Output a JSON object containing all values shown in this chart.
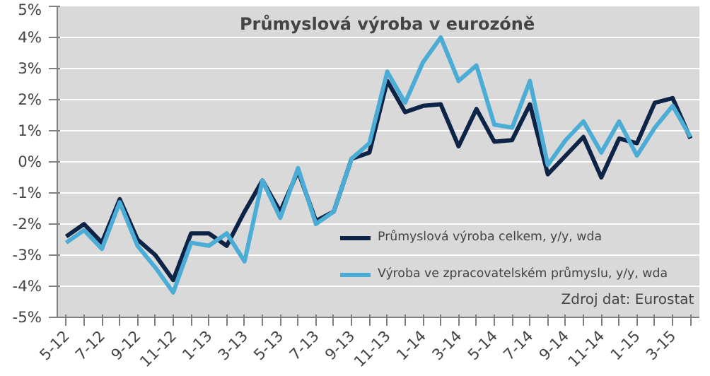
{
  "chart_data": {
    "type": "line",
    "title": "Průmyslová výroba v eurozóně",
    "categories": [
      "5-12",
      null,
      "7-12",
      null,
      "9-12",
      null,
      "11-12",
      null,
      "1-13",
      null,
      "3-13",
      null,
      "5-13",
      null,
      "7-13",
      null,
      "9-13",
      null,
      "11-13",
      null,
      "1-14",
      null,
      "3-14",
      null,
      "5-14",
      null,
      "7-14",
      null,
      "9-14",
      null,
      "11-14",
      null,
      "1-15",
      null,
      "3-15",
      null
    ],
    "series": [
      {
        "name": "Průmyslová výroba celkem, y/y, wda",
        "color": "#0d2447",
        "values": [
          -2.4,
          -2.0,
          -2.6,
          -1.2,
          -2.5,
          -3.0,
          -3.8,
          -2.3,
          -2.3,
          -2.7,
          -1.6,
          -0.6,
          -1.6,
          -0.3,
          -1.9,
          -1.6,
          0.1,
          0.3,
          2.6,
          1.6,
          1.8,
          1.85,
          0.5,
          1.7,
          0.65,
          0.7,
          1.85,
          -0.4,
          0.2,
          0.8,
          -0.5,
          0.75,
          0.6,
          1.9,
          2.05,
          0.75
        ]
      },
      {
        "name": "Výroba ve zpracovatelském průmyslu, y/y, wda",
        "color": "#4bacd6",
        "values": [
          -2.6,
          -2.2,
          -2.8,
          -1.3,
          -2.7,
          -3.4,
          -4.2,
          -2.6,
          -2.7,
          -2.3,
          -3.2,
          -0.6,
          -1.8,
          -0.2,
          -2.0,
          -1.6,
          0.1,
          0.6,
          2.9,
          1.9,
          3.2,
          4.0,
          2.6,
          3.1,
          1.2,
          1.1,
          2.6,
          -0.1,
          0.7,
          1.3,
          0.3,
          1.3,
          0.2,
          1.1,
          1.8,
          0.8
        ]
      }
    ],
    "ylim": [
      -5,
      5
    ],
    "yticks": [
      {
        "value": -5,
        "label": "-5%"
      },
      {
        "value": -4,
        "label": "-4%"
      },
      {
        "value": -3,
        "label": "-3%"
      },
      {
        "value": -2,
        "label": "-2%"
      },
      {
        "value": -1,
        "label": "-1%"
      },
      {
        "value": 0,
        "label": "0%"
      },
      {
        "value": 1,
        "label": "1%"
      },
      {
        "value": 2,
        "label": "2%"
      },
      {
        "value": 3,
        "label": "3%"
      },
      {
        "value": 4,
        "label": "4%"
      },
      {
        "value": 5,
        "label": "5%"
      }
    ],
    "grid": "y",
    "legend": "bottom right",
    "line_style": "solid",
    "annotations": [
      "Zdroj dat: Eurostat"
    ]
  }
}
